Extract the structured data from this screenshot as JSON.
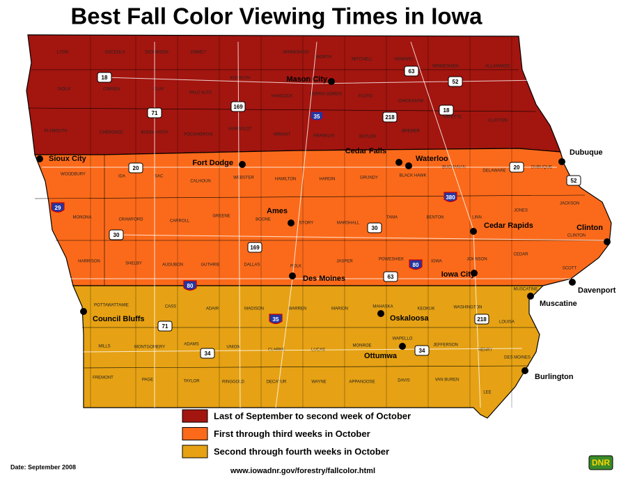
{
  "header": {
    "title": "Best Fall Color Viewing Times in Iowa"
  },
  "legend": [
    {
      "label": "Last of September to second week of October",
      "color": "#a3150f"
    },
    {
      "label": "First through third weeks in October",
      "color": "#fb6a1a"
    },
    {
      "label": "Second through fourth weeks in October",
      "color": "#e6a214"
    }
  ],
  "cities": [
    "Sioux City",
    "Fort Dodge",
    "Mason City",
    "Cedar Falls",
    "Waterloo",
    "Dubuque",
    "Ames",
    "Cedar Rapids",
    "Clinton",
    "Des Moines",
    "Iowa City",
    "Davenport",
    "Muscatine",
    "Council Bluffs",
    "Oskaloosa",
    "Ottumwa",
    "Burlington"
  ],
  "us_highways": [
    "18",
    "63",
    "52",
    "18",
    "71",
    "169",
    "218",
    "20",
    "20",
    "52",
    "30",
    "169",
    "30",
    "63",
    "218",
    "71",
    "34",
    "34"
  ],
  "interstates": [
    "35",
    "29",
    "380",
    "80",
    "80",
    "35"
  ],
  "counties": [
    "LYON",
    "OSCEOLA",
    "DICKINSON",
    "EMMET",
    "WINNEBAGO",
    "WORTH",
    "MITCHELL",
    "HOWARD",
    "WINNESHIEK",
    "ALLAMAKEE",
    "SIOUX",
    "O'BRIEN",
    "CLAY",
    "PALO ALTO",
    "KOSSUTH",
    "HANCOCK",
    "CERRO GORDO",
    "FLOYD",
    "CHICKASAW",
    "FAYETTE",
    "CLAYTON",
    "PLYMOUTH",
    "CHEROKEE",
    "BUENA VISTA",
    "POCAHONTAS",
    "HUMBOLDT",
    "WRIGHT",
    "FRANKLIN",
    "BUTLER",
    "BREMER",
    "WOODBURY",
    "IDA",
    "SAC",
    "CALHOUN",
    "WEBSTER",
    "HAMILTON",
    "HARDIN",
    "GRUNDY",
    "BLACK HAWK",
    "BUCHANAN",
    "DELAWARE",
    "DUBUQUE",
    "MONONA",
    "CRAWFORD",
    "CARROLL",
    "GREENE",
    "BOONE",
    "STORY",
    "MARSHALL",
    "TAMA",
    "BENTON",
    "LINN",
    "JONES",
    "JACKSON",
    "CLINTON",
    "HARRISON",
    "SHELBY",
    "AUDUBON",
    "GUTHRIE",
    "DALLAS",
    "POLK",
    "JASPER",
    "POWESHIEK",
    "IOWA",
    "JOHNSON",
    "CEDAR",
    "SCOTT",
    "MUSCATINE",
    "POTTAWATTAMIE",
    "CASS",
    "ADAIR",
    "MADISON",
    "WARREN",
    "MARION",
    "MAHASKA",
    "KEOKUK",
    "WASHINGTON",
    "LOUISA",
    "MILLS",
    "MONTGOMERY",
    "ADAMS",
    "UNION",
    "CLARKE",
    "LUCAS",
    "MONROE",
    "WAPELLO",
    "JEFFERSON",
    "HENRY",
    "DES MOINES",
    "FREMONT",
    "PAGE",
    "TAYLOR",
    "RINGGOLD",
    "DECATUR",
    "WAYNE",
    "APPANOOSE",
    "DAVIS",
    "VAN BUREN",
    "LEE"
  ],
  "footer": {
    "date": "Date: September 2008",
    "url": "www.iowadnr.gov/forestry/fallcolor.html"
  },
  "logo": "DNR"
}
